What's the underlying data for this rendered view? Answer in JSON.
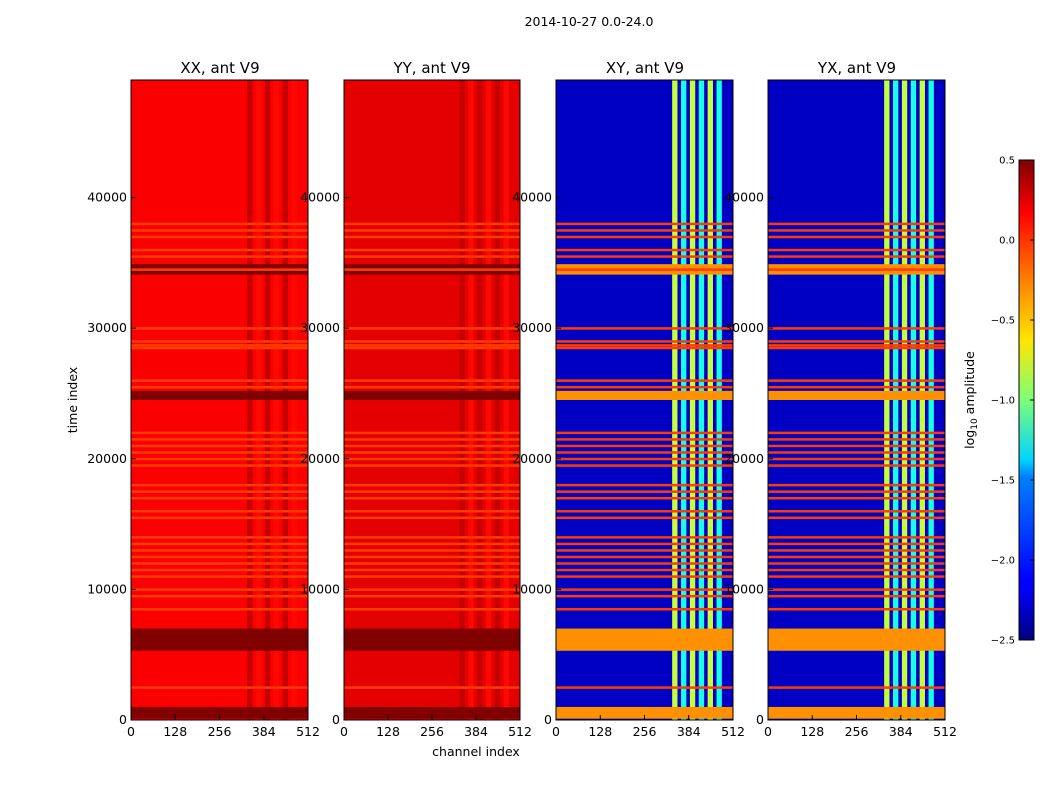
{
  "figure": {
    "suptitle": "2014-10-27 0.0-24.0"
  },
  "chart_data": {
    "type": "heatmap",
    "title": "2014-10-27 0.0-24.0",
    "xlabel": "channel index",
    "ylabel": "time index",
    "xlim": [
      0,
      512
    ],
    "ylim": [
      0,
      49000
    ],
    "xticks": [
      0,
      128,
      256,
      384,
      512
    ],
    "xtick_labels": [
      "0",
      "128",
      "256",
      "384",
      "512"
    ],
    "yticks": [
      0,
      10000,
      20000,
      30000,
      40000
    ],
    "ytick_labels": [
      "0",
      "10000",
      "20000",
      "30000",
      "40000"
    ],
    "colormap": "jet",
    "panels": [
      {
        "title": "XX, ant V9",
        "polarization": "XX",
        "baseline": 0.14
      },
      {
        "title": "YY, ant V9",
        "polarization": "YY",
        "baseline": 0.2
      },
      {
        "title": "XY, ant V9",
        "polarization": "XY",
        "baseline": -2.3
      },
      {
        "title": "YX, ant V9",
        "polarization": "YX",
        "baseline": -2.3
      }
    ],
    "colorbar": {
      "label": "log",
      "label_sub": "10",
      "label_rest": " amplitude",
      "range": [
        -2.5,
        0.5
      ],
      "ticks": [
        0.5,
        0.0,
        -0.5,
        -1.0,
        -1.5,
        -2.0,
        -2.5
      ],
      "tick_labels": [
        "0.5",
        "0.0",
        "−0.5",
        "−1.0",
        "−1.5",
        "−2.0",
        "−2.5"
      ]
    },
    "flagged_time_rows": [
      38000,
      37500,
      37000,
      36000,
      35500,
      34500,
      30000,
      29000,
      28700,
      28500,
      26000,
      25500,
      22000,
      21500,
      21000,
      20500,
      20000,
      19500,
      18000,
      17500,
      17000,
      16000,
      15500,
      14000,
      13500,
      13000,
      12500,
      12000,
      11500,
      11000,
      10000,
      9500,
      8500,
      2500
    ],
    "bright_time_bands": [
      [
        24500,
        25200
      ],
      [
        34100,
        34900
      ],
      [
        5300,
        7000
      ],
      [
        100,
        1000
      ]
    ],
    "bright_channel_band": [
      336,
      490
    ]
  }
}
